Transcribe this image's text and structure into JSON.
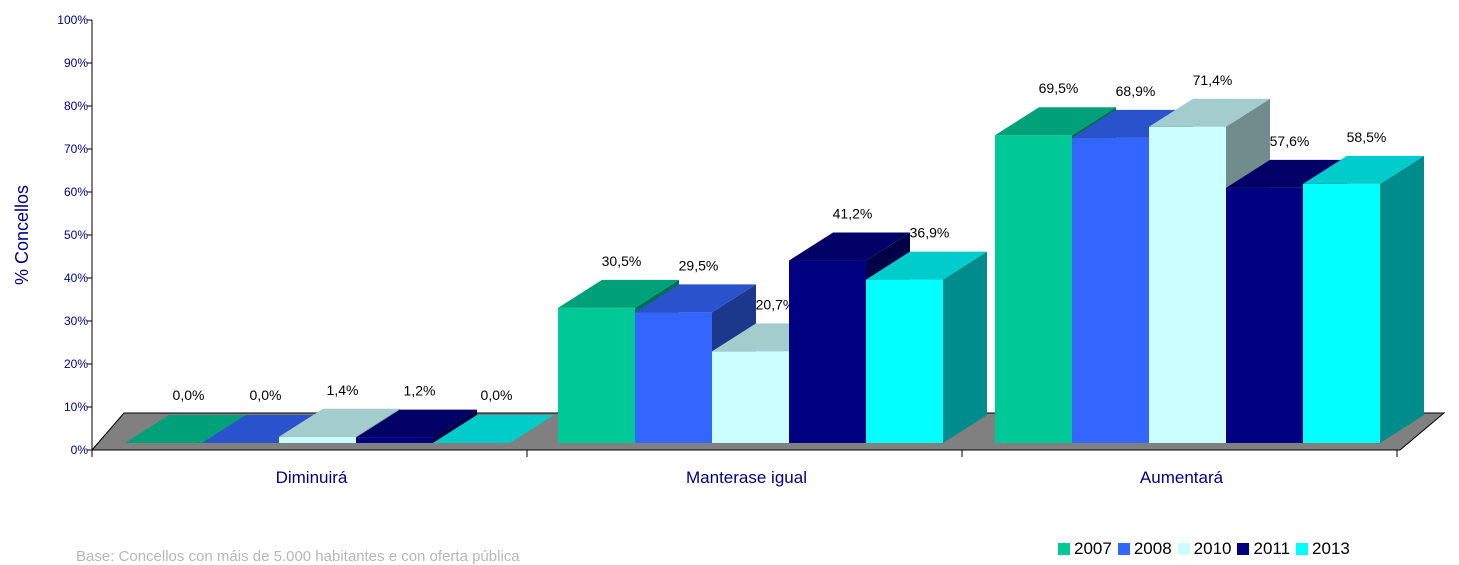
{
  "chart_data": {
    "type": "bar",
    "ylabel": "% Concellos",
    "ylim": [
      0,
      100
    ],
    "yticks": [
      "0%",
      "10%",
      "20%",
      "30%",
      "40%",
      "50%",
      "60%",
      "70%",
      "80%",
      "90%",
      "100%"
    ],
    "categories": [
      "Diminuirá",
      "Manterase igual",
      "Aumentará"
    ],
    "series": [
      {
        "name": "2007",
        "values": [
          0.0,
          30.5,
          69.5
        ],
        "labels": [
          "0,0%",
          "30,5%",
          "69,5%"
        ],
        "color": "#00c896"
      },
      {
        "name": "2008",
        "values": [
          0.0,
          29.5,
          68.9
        ],
        "labels": [
          "0,0%",
          "29,5%",
          "68,9%"
        ],
        "color": "#3366ff"
      },
      {
        "name": "2010",
        "values": [
          1.4,
          20.7,
          71.4
        ],
        "labels": [
          "1,4%",
          "20,7%",
          "71,4%"
        ],
        "color": "#ccffff"
      },
      {
        "name": "2011",
        "values": [
          1.2,
          41.2,
          57.6
        ],
        "labels": [
          "1,2%",
          "41,2%",
          "57,6%"
        ],
        "color": "#000080"
      },
      {
        "name": "2013",
        "values": [
          0.0,
          36.9,
          58.5
        ],
        "labels": [
          "0,0%",
          "36,9%",
          "58,5%"
        ],
        "color": "#00ffff"
      }
    ],
    "legend_position": "bottom-right"
  },
  "footnote": "Base: Concellos con máis de 5.000 habitantes e con oferta pública"
}
